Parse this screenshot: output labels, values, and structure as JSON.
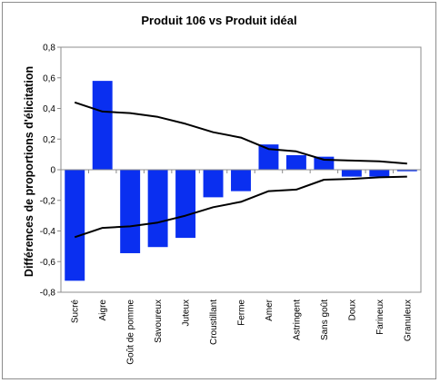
{
  "chart_data": {
    "type": "bar",
    "title": "Produit 106 vs Produit idéal",
    "xlabel": "",
    "ylabel": "Différences de proportions d'élicitation",
    "ylim": [
      -0.8,
      0.8
    ],
    "yticks": [
      "-0,8",
      "-0,6",
      "-0,4",
      "-0,2",
      "0",
      "0,2",
      "0,4",
      "0,6",
      "0,8"
    ],
    "grid": false,
    "legend": "none",
    "categories": [
      "Sucré",
      "Aigre",
      "Goût de pomme",
      "Savoureux",
      "Juteux",
      "Croustillant",
      "Ferme",
      "Amer",
      "Astringent",
      "Sans goût",
      "Doux",
      "Farineux",
      "Granuleux"
    ],
    "series": [
      {
        "type": "bar",
        "color": "#0a2ff0",
        "values": [
          -0.725,
          0.58,
          -0.545,
          -0.505,
          -0.445,
          -0.18,
          -0.14,
          0.165,
          0.095,
          0.085,
          -0.045,
          -0.045,
          -0.01
        ]
      },
      {
        "type": "line",
        "color": "#000000",
        "values": [
          0.44,
          0.38,
          0.37,
          0.345,
          0.3,
          0.245,
          0.21,
          0.135,
          0.12,
          0.065,
          0.06,
          0.055,
          0.04
        ]
      },
      {
        "type": "line",
        "color": "#000000",
        "values": [
          -0.44,
          -0.38,
          -0.37,
          -0.345,
          -0.3,
          -0.245,
          -0.21,
          -0.14,
          -0.13,
          -0.065,
          -0.06,
          -0.05,
          -0.045
        ]
      }
    ]
  }
}
